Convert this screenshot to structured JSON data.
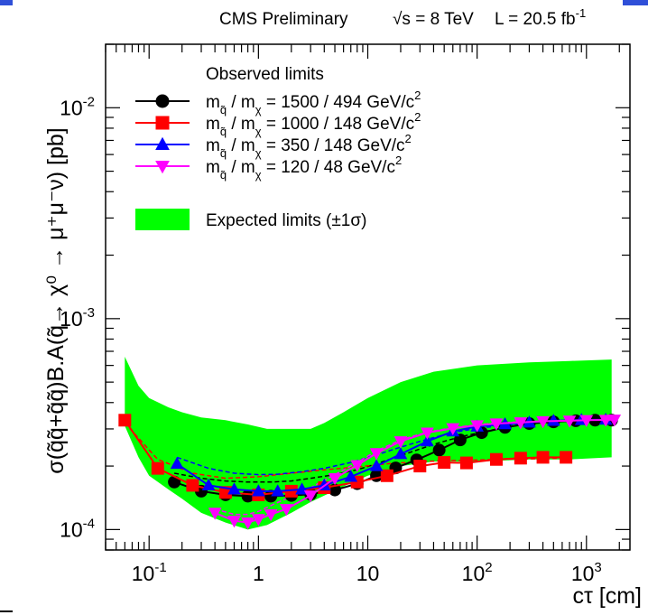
{
  "header": {
    "experiment": "CMS Preliminary",
    "energy": "√s = 8 TeV",
    "lumi": "L = 20.5 fb",
    "lumi_sup": "-1"
  },
  "chart_data": {
    "type": "line",
    "title": "CMS Preliminary   √s = 8 TeV   L = 20.5 fb⁻¹",
    "xlabel": "cτ [cm]",
    "ylabel": "σ(q̃q̃+q̃q̃)B.A(q̃→ χ⁰ → μ⁺μ⁻ν) [pb]",
    "xscale": "log",
    "yscale": "log",
    "xlim": [
      0.04,
      2500
    ],
    "ylim": [
      8e-05,
      0.02
    ],
    "x_ticks": [
      {
        "value": 0.1,
        "label": "10",
        "sup": "-1"
      },
      {
        "value": 1,
        "label": "1",
        "sup": ""
      },
      {
        "value": 10,
        "label": "10",
        "sup": ""
      },
      {
        "value": 100,
        "label": "10",
        "sup": "2"
      },
      {
        "value": 1000,
        "label": "10",
        "sup": "3"
      }
    ],
    "y_ticks": [
      {
        "value": 0.0001,
        "label": "10",
        "sup": "-4"
      },
      {
        "value": 0.001,
        "label": "10",
        "sup": "-3"
      },
      {
        "value": 0.01,
        "label": "10",
        "sup": "-2"
      }
    ],
    "legend": {
      "header": "Observed limits",
      "position": "top-left",
      "entries": [
        {
          "series": 0,
          "text": "m",
          "sub": "q̃",
          "text2": " / m",
          "sub2": "χ",
          "text3": " = 1500 / 494 GeV/c",
          "sup": "2"
        },
        {
          "series": 1,
          "text": "m",
          "sub": "q̃",
          "text2": " / m",
          "sub2": "χ",
          "text3": " = 1000 / 148 GeV/c",
          "sup": "2"
        },
        {
          "series": 2,
          "text": "m",
          "sub": "q̃",
          "text2": " / m",
          "sub2": "χ",
          "text3": " = 350 / 148 GeV/c",
          "sup": "2"
        },
        {
          "series": 3,
          "text": "m",
          "sub": "q̃",
          "text2": " / m",
          "sub2": "χ",
          "text3": " = 120 / 48 GeV/c",
          "sup": "2"
        }
      ],
      "band_label": "Expected limits (±1σ)"
    },
    "band_color": "#00ff00",
    "series": [
      {
        "color": "#000000",
        "marker": "circle",
        "x": [
          0.17,
          0.3,
          0.5,
          0.8,
          1.3,
          2,
          3,
          5,
          8,
          12,
          18,
          28,
          45,
          70,
          110,
          180,
          300,
          500,
          800,
          1200,
          1700
        ],
        "y": [
          0.000168,
          0.000152,
          0.000146,
          0.000144,
          0.000144,
          0.000145,
          0.000147,
          0.000154,
          0.000165,
          0.00018,
          0.000196,
          0.000214,
          0.000238,
          0.000266,
          0.000288,
          0.000305,
          0.000318,
          0.000324,
          0.000328,
          0.00033,
          0.00033
        ],
        "expected": [
          0.000185,
          0.000175,
          0.00017,
          0.000168,
          0.000168,
          0.00017,
          0.000175,
          0.000182,
          0.000192,
          0.000205,
          0.00022,
          0.000238,
          0.000258,
          0.000275,
          0.00029,
          0.000305,
          0.000318,
          0.000325,
          0.00033,
          0.000332,
          0.000333
        ]
      },
      {
        "color": "#ff0000",
        "marker": "square",
        "x": [
          0.06,
          0.12,
          0.25,
          0.5,
          1,
          2,
          4,
          8,
          15,
          30,
          50,
          80,
          150,
          250,
          400,
          650
        ],
        "y": [
          0.00033,
          0.000195,
          0.000162,
          0.00015,
          0.000146,
          0.000152,
          0.000158,
          0.000168,
          0.00018,
          0.0002,
          0.000208,
          0.000207,
          0.000215,
          0.000218,
          0.00022,
          0.00022
        ],
        "expected": [
          0.00032,
          0.000215,
          0.000185,
          0.000175,
          0.000178,
          0.000185,
          0.000192,
          0.000198,
          0.000205,
          0.00021,
          0.000212,
          0.000213,
          0.000215,
          0.000216,
          0.000217,
          0.000218
        ]
      },
      {
        "color": "#0000ff",
        "marker": "triangle",
        "x": [
          0.18,
          0.35,
          0.6,
          1,
          1.5,
          2.5,
          4,
          7,
          12,
          20,
          35,
          60,
          100,
          180,
          300,
          500,
          900,
          1500
        ],
        "y": [
          0.000205,
          0.000162,
          0.000155,
          0.000152,
          0.000152,
          0.000155,
          0.000162,
          0.000178,
          0.0002,
          0.000228,
          0.000262,
          0.000292,
          0.000308,
          0.000316,
          0.000322,
          0.000328,
          0.000331,
          0.000332
        ],
        "expected": [
          0.00022,
          0.000195,
          0.000185,
          0.000182,
          0.000183,
          0.000188,
          0.000195,
          0.000208,
          0.000226,
          0.000246,
          0.000268,
          0.000288,
          0.000302,
          0.000312,
          0.00032,
          0.000326,
          0.00033,
          0.000332
        ]
      },
      {
        "color": "#ff00ff",
        "marker": "triangle-down",
        "x": [
          0.4,
          0.6,
          0.8,
          1,
          1.3,
          1.8,
          3,
          5,
          8,
          12,
          20,
          35,
          60,
          100,
          150,
          250,
          400,
          700,
          1000,
          1500,
          1800
        ],
        "y": [
          0.00012,
          0.00011,
          0.000108,
          0.000112,
          0.000118,
          0.000125,
          0.000145,
          0.000175,
          0.000202,
          0.00023,
          0.000262,
          0.000288,
          0.000302,
          0.000312,
          0.000318,
          0.000322,
          0.000326,
          0.000328,
          0.00033,
          0.000331,
          0.000332
        ],
        "expected": [
          0.000125,
          0.000118,
          0.000118,
          0.000122,
          0.00013,
          0.00014,
          0.000158,
          0.000182,
          0.000208,
          0.000236,
          0.000266,
          0.00029,
          0.000304,
          0.000314,
          0.00032,
          0.000324,
          0.000327,
          0.000329,
          0.00033,
          0.000331,
          0.000332
        ]
      }
    ],
    "band": {
      "x": [
        0.06,
        0.08,
        0.1,
        0.15,
        0.2,
        0.3,
        0.5,
        0.8,
        1.2,
        2,
        3,
        4,
        6,
        10,
        20,
        40,
        100,
        300,
        700,
        1700
      ],
      "upper": [
        0.00066,
        0.00048,
        0.00042,
        0.00038,
        0.00036,
        0.00034,
        0.00033,
        0.000315,
        0.0003,
        0.0003,
        0.0003,
        0.00032,
        0.00036,
        0.00042,
        0.0005,
        0.00056,
        0.0006,
        0.00062,
        0.00063,
        0.00064
      ],
      "lower": [
        0.00031,
        0.00022,
        0.00018,
        0.000155,
        0.00014,
        0.00012,
        0.000108,
        0.0001,
        0.000105,
        0.00012,
        0.000135,
        0.000145,
        0.00016,
        0.00018,
        0.0002,
        0.00021,
        0.00021,
        0.000215,
        0.000215,
        0.00022
      ]
    }
  }
}
